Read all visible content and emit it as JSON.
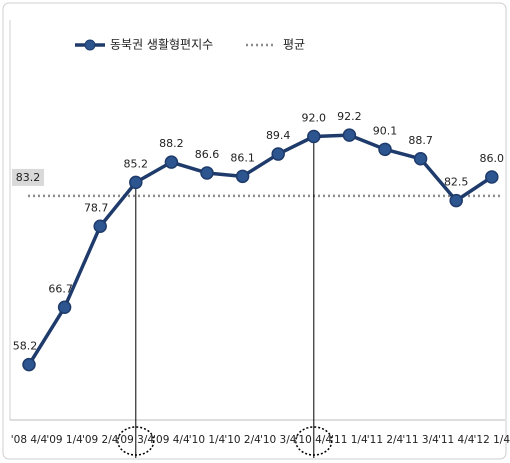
{
  "chart_data": {
    "type": "line",
    "categories": [
      "'08 4/4",
      "'09 1/4",
      "'09 2/4",
      "'09 3/4",
      "'09 4/4",
      "'10 1/4",
      "'10 2/4",
      "'10 3/4",
      "'10 4/4",
      "'11 1/4",
      "'11 2/4",
      "'11 3/4",
      "'11 4/4",
      "'12 1/4"
    ],
    "series": [
      {
        "name": "동북권 생활형편지수",
        "color": "#1f3b6b",
        "values": [
          58.2,
          66.7,
          78.7,
          85.2,
          88.2,
          86.6,
          86.1,
          89.4,
          92.0,
          92.2,
          90.1,
          88.7,
          82.5,
          86.0
        ],
        "value_labels": [
          "58.2",
          "66.7",
          "78.7",
          "85.2",
          "88.2",
          "86.6",
          "86.1",
          "89.4",
          "92.0",
          "92.2",
          "90.1",
          "88.7",
          "82.5",
          "86.0"
        ]
      }
    ],
    "average": {
      "name": "평균",
      "value": 83.2,
      "color": "#8c8c8c"
    },
    "highlights": [
      3,
      8
    ],
    "ylim": [
      50,
      110
    ]
  }
}
